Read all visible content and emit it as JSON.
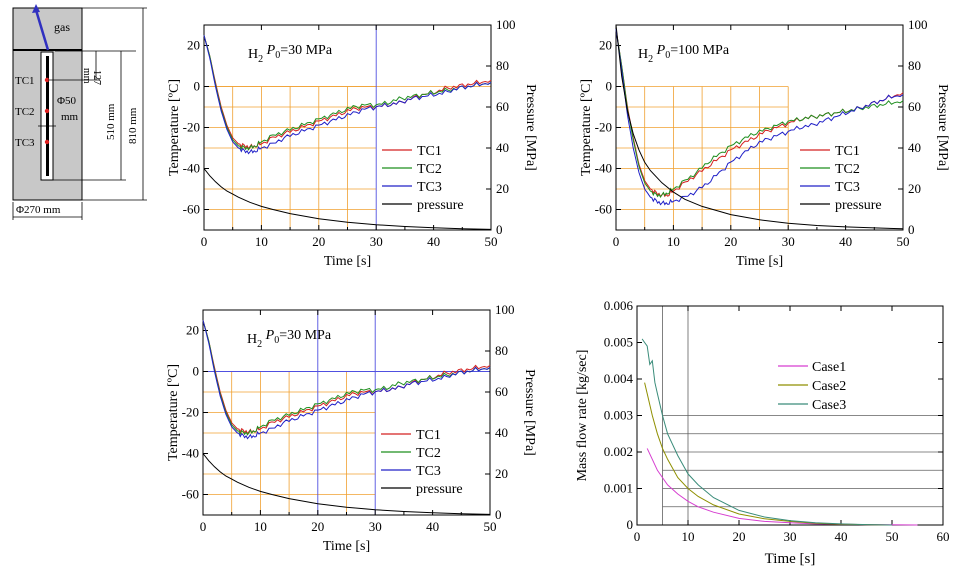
{
  "colors": {
    "tc1": "#d42020",
    "tc2": "#1f8f1f",
    "tc3": "#2020c8",
    "pressure": "#000000",
    "case1": "#d63fd0",
    "case2": "#8f8f00",
    "case3": "#3a8c7a",
    "grid_orange": "#f0a030",
    "grid_blue": "#5050e0",
    "grid_gray": "#606060",
    "vessel_fill": "#c8c8c8",
    "arrow": "#3030c0"
  },
  "schematic": {
    "gas_label": "gas",
    "tc_labels": [
      "TC1",
      "TC2",
      "TC3"
    ],
    "dim_127": "127",
    "dim_127_unit": "mm",
    "dim_diam": "Φ50",
    "dim_diam_unit": "mm",
    "dim_510": "510 mm",
    "dim_810": "810 mm",
    "dim_width": "Φ270 mm"
  },
  "chart_data": [
    {
      "id": "chart1",
      "type": "line",
      "annotation_prefix": "H",
      "annotation_sub": "2",
      "annotation_P": "P",
      "annotation_P_sub": "0",
      "annotation_value": "=30 MPa",
      "xlabel": "Time [s]",
      "ylabel_left": "Temperature [ºC]",
      "ylabel_right": "Pressure [MPa]",
      "xlim": [
        0,
        50
      ],
      "ylim_left": [
        -70,
        30
      ],
      "ylim_right": [
        0,
        100
      ],
      "x_ticks": [
        "0",
        "10",
        "20",
        "30",
        "40",
        "50"
      ],
      "y_ticks_left": [
        "-60",
        "-40",
        "-20",
        "0",
        "20"
      ],
      "y_ticks_right": [
        "0",
        "20",
        "40",
        "60",
        "80",
        "100"
      ],
      "guides": {
        "blue_x": [
          30
        ],
        "blue_y": [],
        "orange_x": [
          5,
          10,
          15,
          20,
          25
        ],
        "orange_y": [
          0,
          -10,
          -20,
          -30,
          -50,
          -60
        ],
        "orange_x_extent": 30
      },
      "legend": [
        "TC1",
        "TC2",
        "TC3",
        "pressure"
      ],
      "series": [
        {
          "name": "TC1",
          "axis": "left",
          "x": [
            0,
            1,
            2,
            3,
            4,
            5,
            6,
            7,
            8,
            9,
            10,
            12,
            14,
            16,
            18,
            20,
            22,
            24,
            26,
            28,
            30,
            32,
            34,
            36,
            38,
            40,
            42,
            44,
            46,
            48,
            50
          ],
          "y": [
            25,
            15,
            2,
            -10,
            -19,
            -25,
            -28,
            -29,
            -29.5,
            -29,
            -28,
            -25,
            -23,
            -21,
            -19,
            -17,
            -15,
            -13,
            -11,
            -10,
            -10,
            -9,
            -8,
            -6,
            -4,
            -3,
            -1,
            0,
            1,
            2,
            3
          ]
        },
        {
          "name": "TC2",
          "axis": "left",
          "x": [
            0,
            1,
            2,
            3,
            4,
            5,
            6,
            7,
            8,
            9,
            10,
            12,
            14,
            16,
            18,
            20,
            22,
            24,
            26,
            28,
            30,
            32,
            34,
            36,
            38,
            40,
            42,
            44,
            46,
            48,
            50
          ],
          "y": [
            25,
            15,
            1,
            -11,
            -20,
            -26,
            -29,
            -30,
            -30,
            -29,
            -27,
            -24,
            -22,
            -20,
            -18,
            -16,
            -14,
            -12,
            -10,
            -9,
            -9,
            -8,
            -6,
            -5,
            -4,
            -3,
            -2,
            -1,
            0,
            1,
            2
          ]
        },
        {
          "name": "TC3",
          "axis": "left",
          "x": [
            0,
            1,
            2,
            3,
            4,
            5,
            6,
            7,
            8,
            9,
            10,
            12,
            14,
            16,
            18,
            20,
            22,
            24,
            26,
            28,
            30,
            32,
            34,
            36,
            38,
            40,
            42,
            44,
            46,
            48,
            50
          ],
          "y": [
            25,
            14,
            0,
            -12,
            -21,
            -27,
            -30,
            -31.5,
            -32,
            -31.5,
            -30,
            -28,
            -25,
            -23,
            -21,
            -19,
            -17,
            -15,
            -13,
            -11,
            -10,
            -9,
            -8,
            -6,
            -5,
            -4,
            -3,
            -1,
            0,
            1,
            2
          ]
        },
        {
          "name": "pressure",
          "axis": "right",
          "x": [
            0,
            1,
            2,
            3,
            4,
            5,
            6,
            8,
            10,
            12,
            15,
            20,
            25,
            30,
            35,
            40,
            45,
            50
          ],
          "y": [
            30,
            26.5,
            23.5,
            21,
            19,
            17.5,
            16,
            13.5,
            11.5,
            10,
            8,
            5.5,
            3.8,
            2.6,
            1.7,
            1.1,
            0.6,
            0.3
          ]
        }
      ]
    },
    {
      "id": "chart2",
      "type": "line",
      "annotation_prefix": "H",
      "annotation_sub": "2",
      "annotation_P": "P",
      "annotation_P_sub": "0",
      "annotation_value": "=100 MPa",
      "xlabel": "Time [s]",
      "ylabel_left": "Temperature [ºC]",
      "ylabel_right": "Pressure [MPa]",
      "xlim": [
        0,
        50
      ],
      "ylim_left": [
        -70,
        30
      ],
      "ylim_right": [
        0,
        100
      ],
      "x_ticks": [
        "0",
        "10",
        "20",
        "30",
        "40",
        "50"
      ],
      "y_ticks_left": [
        "-60",
        "-40",
        "-20",
        "0",
        "20"
      ],
      "y_ticks_right": [
        "0",
        "20",
        "40",
        "60",
        "80",
        "100"
      ],
      "guides": {
        "blue_x": [],
        "blue_y": [],
        "orange_x": [
          5,
          10,
          15,
          20,
          25,
          30
        ],
        "orange_y": [
          0,
          -10,
          -20,
          -30,
          -40,
          -50,
          -60
        ],
        "orange_x_extent": 30
      },
      "legend": [
        "TC1",
        "TC2",
        "TC3",
        "pressure"
      ],
      "series": [
        {
          "name": "TC1",
          "axis": "left",
          "x": [
            0,
            1,
            2,
            3,
            4,
            5,
            6,
            7,
            8,
            9,
            10,
            12,
            14,
            16,
            18,
            20,
            22,
            24,
            26,
            28,
            30,
            32,
            34,
            36,
            38,
            40,
            42,
            44,
            46,
            48,
            50
          ],
          "y": [
            28,
            10,
            -10,
            -25,
            -38,
            -46,
            -50,
            -52,
            -53,
            -53,
            -51,
            -47,
            -43,
            -39,
            -35,
            -31,
            -28,
            -25,
            -22,
            -20,
            -18,
            -16,
            -15,
            -14,
            -13,
            -12,
            -11,
            -9,
            -7,
            -5,
            -3
          ]
        },
        {
          "name": "TC2",
          "axis": "left",
          "x": [
            0,
            1,
            2,
            3,
            4,
            5,
            6,
            7,
            8,
            9,
            10,
            12,
            14,
            16,
            18,
            20,
            22,
            24,
            26,
            28,
            30,
            32,
            34,
            36,
            38,
            40,
            42,
            44,
            46,
            48,
            50
          ],
          "y": [
            28,
            10,
            -11,
            -26,
            -39,
            -47,
            -51,
            -53,
            -53,
            -52,
            -50,
            -46,
            -42,
            -37,
            -33,
            -29,
            -26,
            -23,
            -21,
            -19,
            -17,
            -16,
            -15,
            -14,
            -13,
            -12,
            -11,
            -10,
            -9,
            -8,
            -7
          ]
        },
        {
          "name": "TC3",
          "axis": "left",
          "x": [
            0,
            1,
            2,
            3,
            4,
            5,
            6,
            7,
            8,
            9,
            10,
            12,
            14,
            16,
            18,
            20,
            22,
            24,
            26,
            28,
            30,
            32,
            34,
            36,
            38,
            40,
            42,
            44,
            46,
            48,
            50
          ],
          "y": [
            28,
            8,
            -14,
            -30,
            -42,
            -50,
            -54,
            -56,
            -57,
            -57,
            -56,
            -54,
            -51,
            -47,
            -42,
            -37,
            -33,
            -29,
            -26,
            -24,
            -22,
            -20,
            -19,
            -17,
            -15,
            -13,
            -11,
            -9,
            -7,
            -5,
            -4
          ]
        },
        {
          "name": "pressure",
          "axis": "right",
          "x": [
            0,
            1,
            2,
            3,
            4,
            5,
            6,
            8,
            10,
            12,
            15,
            20,
            25,
            30,
            35,
            40,
            45,
            50
          ],
          "y": [
            100,
            75,
            58,
            47,
            39,
            33,
            29,
            23,
            18.5,
            15,
            11.5,
            7.5,
            5,
            3.3,
            2.2,
            1.5,
            1,
            0.6
          ]
        }
      ]
    },
    {
      "id": "chart3",
      "type": "line",
      "annotation_prefix": "H",
      "annotation_sub": "2",
      "annotation_P": "P",
      "annotation_P_sub": "0",
      "annotation_value": "=30 MPa",
      "xlabel": "Time [s]",
      "ylabel_left": "Temperature [ºC]",
      "ylabel_right": "Pressure [MPa]",
      "xlim": [
        0,
        50
      ],
      "ylim_left": [
        -70,
        30
      ],
      "ylim_right": [
        0,
        100
      ],
      "x_ticks": [
        "0",
        "10",
        "20",
        "30",
        "40",
        "50"
      ],
      "y_ticks_left": [
        "-60",
        "-40",
        "-20",
        "0",
        "20"
      ],
      "y_ticks_right": [
        "0",
        "20",
        "40",
        "60",
        "80",
        "100"
      ],
      "guides": {
        "blue_x": [
          20,
          30
        ],
        "blue_y": [
          0
        ],
        "orange_x": [
          5,
          10,
          15,
          25
        ],
        "orange_y": [
          -10,
          -20,
          -30,
          -50,
          -60
        ],
        "orange_x_extent": 30
      },
      "legend": [
        "TC1",
        "TC2",
        "TC3",
        "pressure"
      ],
      "series": [
        {
          "name": "TC1",
          "axis": "left",
          "x": [
            0,
            1,
            2,
            3,
            4,
            5,
            6,
            7,
            8,
            9,
            10,
            12,
            14,
            16,
            18,
            20,
            22,
            24,
            26,
            28,
            30,
            32,
            34,
            36,
            38,
            40,
            42,
            44,
            46,
            48,
            50
          ],
          "y": [
            25,
            15,
            2,
            -10,
            -19,
            -25,
            -28,
            -29,
            -29.5,
            -29,
            -28,
            -25,
            -23,
            -21,
            -19,
            -17,
            -15,
            -13,
            -11,
            -10,
            -10,
            -9,
            -8,
            -6,
            -4,
            -3,
            -1,
            0,
            1,
            2,
            3
          ]
        },
        {
          "name": "TC2",
          "axis": "left",
          "x": [
            0,
            1,
            2,
            3,
            4,
            5,
            6,
            7,
            8,
            9,
            10,
            12,
            14,
            16,
            18,
            20,
            22,
            24,
            26,
            28,
            30,
            32,
            34,
            36,
            38,
            40,
            42,
            44,
            46,
            48,
            50
          ],
          "y": [
            25,
            15,
            1,
            -11,
            -20,
            -26,
            -29,
            -30,
            -30,
            -29,
            -27,
            -24,
            -22,
            -20,
            -18,
            -16,
            -14,
            -12,
            -10,
            -9,
            -9,
            -8,
            -6,
            -5,
            -4,
            -3,
            -2,
            -1,
            0,
            1,
            2
          ]
        },
        {
          "name": "TC3",
          "axis": "left",
          "x": [
            0,
            1,
            2,
            3,
            4,
            5,
            6,
            7,
            8,
            9,
            10,
            12,
            14,
            16,
            18,
            20,
            22,
            24,
            26,
            28,
            30,
            32,
            34,
            36,
            38,
            40,
            42,
            44,
            46,
            48,
            50
          ],
          "y": [
            25,
            14,
            0,
            -12,
            -21,
            -27,
            -30,
            -31.5,
            -32,
            -31.5,
            -30,
            -28,
            -25,
            -23,
            -21,
            -19,
            -17,
            -15,
            -13,
            -11,
            -10,
            -9,
            -8,
            -6,
            -5,
            -4,
            -3,
            -1,
            0,
            1,
            2
          ]
        },
        {
          "name": "pressure",
          "axis": "right",
          "x": [
            0,
            1,
            2,
            3,
            4,
            5,
            6,
            8,
            10,
            12,
            15,
            20,
            25,
            30,
            35,
            40,
            45,
            50
          ],
          "y": [
            30,
            26.5,
            23.5,
            21,
            19,
            17.5,
            16,
            13.5,
            11.5,
            10,
            8,
            5.5,
            3.8,
            2.6,
            1.7,
            1.1,
            0.6,
            0.3
          ]
        }
      ]
    },
    {
      "id": "chart4",
      "type": "line",
      "xlabel": "Time [s]",
      "ylabel": "Mass flow rate [kg/sec]",
      "xlim": [
        0,
        60
      ],
      "ylim": [
        0,
        0.006
      ],
      "x_ticks": [
        "0",
        "10",
        "20",
        "30",
        "40",
        "50",
        "60"
      ],
      "y_ticks": [
        "0",
        "0.001",
        "0.002",
        "0.003",
        "0.004",
        "0.005",
        "0.006"
      ],
      "guides": {
        "gray_x": [
          5,
          10
        ],
        "gray_y": [
          0.0005,
          0.001,
          0.0015,
          0.002,
          0.0025,
          0.003
        ]
      },
      "legend": [
        "Case1",
        "Case2",
        "Case3"
      ],
      "series": [
        {
          "name": "Case1",
          "x": [
            2,
            3,
            4,
            5,
            6,
            8,
            10,
            12,
            15,
            20,
            25,
            30,
            35,
            40,
            45,
            50,
            55
          ],
          "y": [
            0.0021,
            0.0018,
            0.0015,
            0.0013,
            0.0011,
            0.00085,
            0.00065,
            0.0005,
            0.00035,
            0.00018,
            0.0001,
            6e-05,
            3e-05,
            2e-05,
            1e-05,
            5e-06,
            0
          ]
        },
        {
          "name": "Case2",
          "x": [
            1.5,
            2,
            3,
            4,
            5,
            6,
            8,
            10,
            12,
            15,
            20,
            25,
            30,
            35,
            40,
            45,
            50
          ],
          "y": [
            0.0039,
            0.0036,
            0.003,
            0.0025,
            0.0021,
            0.0018,
            0.0013,
            0.001,
            0.00078,
            0.00055,
            0.0003,
            0.00017,
            0.0001,
            5e-05,
            2e-05,
            1e-05,
            0
          ]
        },
        {
          "name": "Case3",
          "x": [
            1,
            1.5,
            2,
            2.5,
            3,
            3.5,
            4,
            5,
            6,
            8,
            10,
            12,
            15,
            20,
            25,
            30,
            35,
            40,
            45,
            50
          ],
          "y": [
            0.0051,
            0.005,
            0.0049,
            0.0044,
            0.0045,
            0.0039,
            0.0036,
            0.003,
            0.0025,
            0.0019,
            0.0014,
            0.0011,
            0.00075,
            0.0004,
            0.00022,
            0.00012,
            6e-05,
            3e-05,
            1e-05,
            0
          ]
        }
      ]
    }
  ]
}
